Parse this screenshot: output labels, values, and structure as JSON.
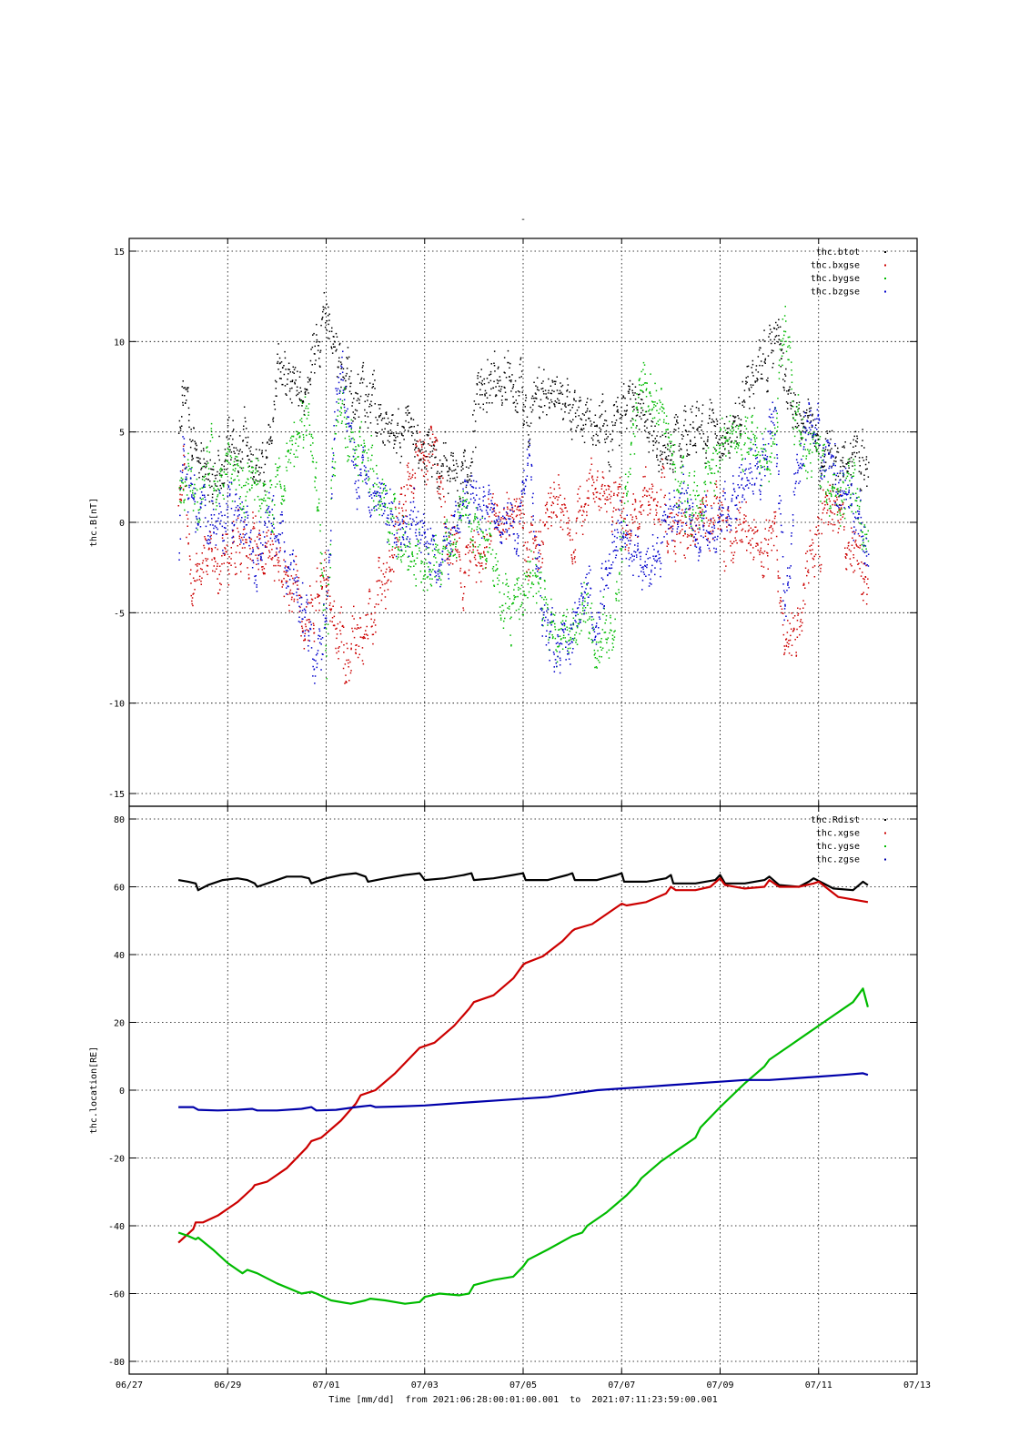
{
  "figure": {
    "top_mark": "-",
    "x_axis": {
      "title": "Time [mm/dd]  from 2021:06:28:00:01:00.001  to  2021:07:11:23:59:00.001",
      "ticks": [
        {
          "day": -1,
          "label": "06/27"
        },
        {
          "day": 1,
          "label": "06/29"
        },
        {
          "day": 3,
          "label": "07/01"
        },
        {
          "day": 5,
          "label": "07/03"
        },
        {
          "day": 7,
          "label": "07/05"
        },
        {
          "day": 9,
          "label": "07/07"
        },
        {
          "day": 11,
          "label": "07/09"
        },
        {
          "day": 13,
          "label": "07/11"
        },
        {
          "day": 15,
          "label": "07/13"
        }
      ],
      "range_days": [
        -1,
        15
      ]
    }
  },
  "chart_data": [
    {
      "type": "scatter",
      "ylabel": "thc.B[nT]",
      "ylim": [
        -15,
        15
      ],
      "yticks": [
        15,
        10,
        5,
        0,
        -5,
        -10,
        -15
      ],
      "grid": true,
      "legend_position": "top-right",
      "x_units": "days since 2021-06-28 00:00",
      "series": [
        {
          "name": "thc.btot",
          "color": "#000000",
          "x": [
            0.0,
            0.1,
            0.2,
            0.3,
            0.5,
            0.7,
            1.0,
            1.3,
            1.5,
            1.8,
            2.0,
            2.3,
            2.5,
            2.7,
            2.9,
            3.0,
            3.1,
            3.3,
            3.5,
            3.8,
            4.0,
            4.3,
            4.6,
            4.9,
            5.2,
            5.5,
            5.8,
            6.2,
            6.6,
            6.9,
            7.1,
            7.3,
            7.6,
            7.9,
            8.2,
            8.5,
            8.8,
            9.1,
            9.4,
            9.7,
            10.0,
            10.3,
            10.6,
            10.9,
            11.2,
            11.5,
            11.8,
            12.1,
            12.4,
            12.7,
            12.9,
            13.1,
            13.4,
            13.7,
            14.0
          ],
          "y": [
            6.0,
            8.5,
            4.5,
            3.8,
            4.0,
            2.5,
            3.8,
            4.5,
            3.0,
            3.2,
            8.0,
            7.5,
            7.0,
            9.0,
            10.5,
            12.0,
            9.5,
            8.5,
            7.5,
            7.0,
            6.5,
            5.0,
            4.5,
            4.0,
            3.5,
            2.5,
            2.0,
            7.5,
            8.5,
            7.0,
            6.0,
            6.5,
            7.0,
            6.5,
            6.0,
            4.5,
            5.5,
            6.0,
            6.5,
            4.5,
            3.5,
            4.5,
            5.0,
            4.5,
            5.0,
            7.0,
            8.5,
            10.0,
            7.0,
            5.5,
            5.0,
            3.5,
            3.0,
            4.0,
            3.0
          ]
        },
        {
          "name": "thc.bxgse",
          "color": "#cc0000",
          "x": [
            0.0,
            0.1,
            0.2,
            0.3,
            0.5,
            0.7,
            1.0,
            1.3,
            1.6,
            1.9,
            2.2,
            2.5,
            2.8,
            3.0,
            3.2,
            3.4,
            3.6,
            3.8,
            4.0,
            4.3,
            4.6,
            4.9,
            5.2,
            5.5,
            5.8,
            6.1,
            6.4,
            6.7,
            7.0,
            7.3,
            7.6,
            7.9,
            8.2,
            8.5,
            8.8,
            9.1,
            9.4,
            9.7,
            10.0,
            10.3,
            10.6,
            10.9,
            11.2,
            11.5,
            11.8,
            12.1,
            12.3,
            12.6,
            12.9,
            13.2,
            13.5,
            13.8,
            14.0
          ],
          "y": [
            2.0,
            4.0,
            -2.0,
            -3.0,
            -1.5,
            -2.5,
            -2.0,
            -1.0,
            -1.5,
            -2.0,
            -3.0,
            -5.0,
            -4.0,
            -3.0,
            -6.5,
            -7.5,
            -6.5,
            -5.5,
            -4.0,
            -2.5,
            2.0,
            4.0,
            3.5,
            -1.0,
            -2.5,
            -2.0,
            1.0,
            0.0,
            -1.0,
            -2.0,
            1.5,
            -0.5,
            1.0,
            2.0,
            1.0,
            -0.5,
            0.5,
            1.5,
            0.0,
            -1.0,
            0.5,
            1.0,
            -1.0,
            0.0,
            -0.5,
            -1.0,
            -7.5,
            -5.5,
            -1.0,
            1.0,
            -0.5,
            -2.5,
            -4.0
          ]
        },
        {
          "name": "thc.bygse",
          "color": "#00bb00",
          "x": [
            0.0,
            0.2,
            0.4,
            0.6,
            0.8,
            1.0,
            1.3,
            1.6,
            1.9,
            2.2,
            2.5,
            2.7,
            2.9,
            3.0,
            3.1,
            3.3,
            3.5,
            3.7,
            4.0,
            4.3,
            4.6,
            4.9,
            5.2,
            5.5,
            5.8,
            6.1,
            6.4,
            6.7,
            7.0,
            7.3,
            7.6,
            7.9,
            8.2,
            8.5,
            8.8,
            9.1,
            9.4,
            9.7,
            10.0,
            10.3,
            10.6,
            10.9,
            11.2,
            11.5,
            11.8,
            12.1,
            12.3,
            12.5,
            12.8,
            13.1,
            13.4,
            13.7,
            14.0
          ],
          "y": [
            3.0,
            2.5,
            1.5,
            3.5,
            2.0,
            3.0,
            1.5,
            2.0,
            1.0,
            3.0,
            6.0,
            4.0,
            -2.0,
            -9.0,
            3.5,
            6.5,
            4.0,
            3.5,
            2.5,
            1.0,
            -1.0,
            -2.0,
            -2.5,
            -1.0,
            0.5,
            -0.5,
            -2.0,
            -5.0,
            -4.0,
            -3.0,
            -5.5,
            -6.0,
            -4.0,
            -6.5,
            -6.0,
            1.5,
            7.5,
            6.5,
            4.0,
            0.5,
            1.5,
            3.5,
            4.5,
            5.0,
            3.0,
            4.5,
            11.5,
            6.0,
            4.0,
            2.0,
            1.5,
            2.0,
            -1.0
          ]
        },
        {
          "name": "thc.bzgse",
          "color": "#0000cc",
          "x": [
            0.0,
            0.1,
            0.2,
            0.4,
            0.6,
            0.9,
            1.2,
            1.5,
            1.8,
            2.1,
            2.4,
            2.6,
            2.8,
            3.0,
            3.2,
            3.4,
            3.6,
            3.9,
            4.2,
            4.5,
            4.8,
            5.1,
            5.4,
            5.7,
            6.0,
            6.3,
            6.5,
            6.7,
            6.9,
            7.1,
            7.3,
            7.6,
            7.9,
            8.2,
            8.5,
            8.8,
            9.1,
            9.4,
            9.7,
            10.0,
            10.3,
            10.6,
            10.9,
            11.2,
            11.5,
            11.8,
            12.1,
            12.3,
            12.5,
            12.8,
            13.1,
            13.4,
            13.7,
            14.0
          ],
          "y": [
            -1.0,
            5.0,
            1.0,
            0.5,
            -0.5,
            0.0,
            1.5,
            -2.0,
            0.0,
            -1.0,
            -3.0,
            -6.0,
            -8.0,
            -5.0,
            8.0,
            6.0,
            3.0,
            1.5,
            0.5,
            -0.5,
            0.0,
            -1.0,
            -2.0,
            0.0,
            1.5,
            0.5,
            -0.5,
            0.5,
            0.0,
            5.0,
            -3.0,
            -7.5,
            -6.0,
            -4.0,
            -6.0,
            -1.5,
            -1.0,
            -3.0,
            -1.5,
            0.5,
            1.0,
            -1.0,
            0.0,
            1.5,
            3.0,
            2.5,
            6.0,
            -6.0,
            2.0,
            6.5,
            4.0,
            2.0,
            1.5,
            -2.0
          ]
        }
      ]
    },
    {
      "type": "line",
      "ylabel": "thc.location[RE]",
      "ylim": [
        -80,
        80
      ],
      "yticks": [
        80,
        60,
        40,
        20,
        0,
        -20,
        -40,
        -60,
        -80
      ],
      "grid": true,
      "legend_position": "top-right",
      "x_units": "days since 2021-06-28 00:00",
      "series": [
        {
          "name": "thc.Rdist",
          "color": "#000000",
          "x": [
            0.0,
            0.2,
            0.35,
            0.4,
            0.6,
            0.9,
            1.2,
            1.4,
            1.55,
            1.6,
            1.9,
            2.2,
            2.5,
            2.65,
            2.7,
            3.0,
            3.3,
            3.6,
            3.8,
            3.85,
            4.2,
            4.6,
            4.9,
            5.0,
            5.4,
            5.8,
            5.95,
            6.0,
            6.4,
            6.8,
            7.0,
            7.05,
            7.5,
            7.9,
            8.0,
            8.05,
            8.5,
            8.9,
            9.0,
            9.05,
            9.5,
            9.9,
            10.0,
            10.05,
            10.5,
            10.9,
            11.0,
            11.1,
            11.5,
            11.9,
            12.0,
            12.2,
            12.6,
            12.8,
            12.9,
            13.3,
            13.7,
            13.9,
            14.0
          ],
          "y": [
            62,
            61.5,
            61,
            59,
            60.5,
            62,
            62.5,
            62,
            61,
            60,
            61.5,
            63,
            63,
            62.5,
            61,
            62.5,
            63.5,
            64,
            63,
            61.5,
            62.5,
            63.5,
            64,
            62,
            62.5,
            63.5,
            64,
            62,
            62.5,
            63.5,
            64,
            62,
            62,
            63.5,
            64,
            62,
            62,
            63.5,
            64,
            61.5,
            61.5,
            62.5,
            63.5,
            61,
            61,
            62,
            63.5,
            61,
            61,
            62,
            63,
            60.5,
            60,
            61.5,
            62.5,
            59.5,
            59,
            61.5,
            60.5
          ]
        },
        {
          "name": "thc.xgse",
          "color": "#cc0000",
          "x": [
            0.0,
            0.3,
            0.35,
            0.5,
            0.8,
            1.2,
            1.5,
            1.55,
            1.8,
            2.2,
            2.6,
            2.7,
            2.9,
            3.3,
            3.6,
            3.7,
            4.0,
            4.4,
            4.8,
            4.9,
            5.2,
            5.6,
            5.9,
            6.0,
            6.4,
            6.8,
            7.0,
            7.05,
            7.4,
            7.8,
            8.0,
            8.05,
            8.4,
            8.8,
            9.0,
            9.1,
            9.5,
            9.9,
            10.0,
            10.1,
            10.5,
            10.8,
            11.0,
            11.1,
            11.5,
            11.9,
            12.0,
            12.2,
            12.6,
            12.9,
            13.0,
            13.4,
            13.8,
            14.0
          ],
          "y": [
            -45,
            -41,
            -39,
            -39,
            -37,
            -33,
            -29,
            -28,
            -27,
            -23,
            -17,
            -15,
            -14,
            -9,
            -4,
            -1.5,
            0,
            5,
            11,
            12.5,
            14,
            19,
            24,
            26,
            28,
            33,
            37,
            37.5,
            39.5,
            44,
            47,
            47.5,
            49,
            53,
            55,
            54.5,
            55.5,
            58,
            60,
            59,
            59,
            60,
            62.5,
            60.5,
            59.5,
            60,
            62,
            60,
            60,
            61,
            61.5,
            57,
            56,
            55.5
          ]
        },
        {
          "name": "thc.ygse",
          "color": "#00bb00",
          "x": [
            0.0,
            0.2,
            0.35,
            0.4,
            0.7,
            1.0,
            1.3,
            1.4,
            1.6,
            2.0,
            2.5,
            2.7,
            2.8,
            3.1,
            3.5,
            3.8,
            3.9,
            4.2,
            4.6,
            4.9,
            5.0,
            5.3,
            5.7,
            5.9,
            6.0,
            6.4,
            6.8,
            7.0,
            7.1,
            7.5,
            8.0,
            8.2,
            8.3,
            8.7,
            9.1,
            9.3,
            9.4,
            9.8,
            10.2,
            10.5,
            10.6,
            11.0,
            11.5,
            11.9,
            12.0,
            12.4,
            12.8,
            12.9,
            13.3,
            13.7,
            13.9,
            14.0
          ],
          "y": [
            -42,
            -43,
            -44,
            -43.5,
            -47,
            -51,
            -54,
            -53,
            -54,
            -57,
            -60,
            -59.5,
            -60,
            -62,
            -63,
            -62,
            -61.5,
            -62,
            -63,
            -62.5,
            -61,
            -60,
            -60.5,
            -60,
            -57.5,
            -56,
            -55,
            -52,
            -50,
            -47,
            -43,
            -42,
            -40,
            -36,
            -31,
            -28,
            -26,
            -21,
            -17,
            -14,
            -11,
            -5,
            2,
            7,
            9,
            13,
            17,
            18,
            22,
            26,
            30,
            24.5
          ]
        },
        {
          "name": "thc.zgse",
          "color": "#0000aa",
          "x": [
            0.0,
            0.3,
            0.4,
            0.8,
            1.2,
            1.5,
            1.6,
            2.0,
            2.5,
            2.7,
            2.8,
            3.2,
            3.6,
            3.9,
            4.0,
            4.5,
            5.0,
            5.5,
            6.0,
            6.5,
            7.0,
            7.5,
            8.0,
            8.5,
            9.0,
            9.5,
            10.0,
            10.5,
            11.0,
            11.5,
            12.0,
            12.5,
            13.0,
            13.5,
            13.9,
            14.0
          ],
          "y": [
            -5,
            -5,
            -5.8,
            -6,
            -5.8,
            -5.5,
            -6,
            -6,
            -5.5,
            -5,
            -6,
            -5.8,
            -5,
            -4.5,
            -5,
            -4.8,
            -4.5,
            -4,
            -3.5,
            -3,
            -2.5,
            -2,
            -1,
            0,
            0.5,
            1,
            1.5,
            2,
            2.5,
            3,
            3,
            3.5,
            4,
            4.5,
            5,
            4.5
          ]
        }
      ]
    }
  ]
}
